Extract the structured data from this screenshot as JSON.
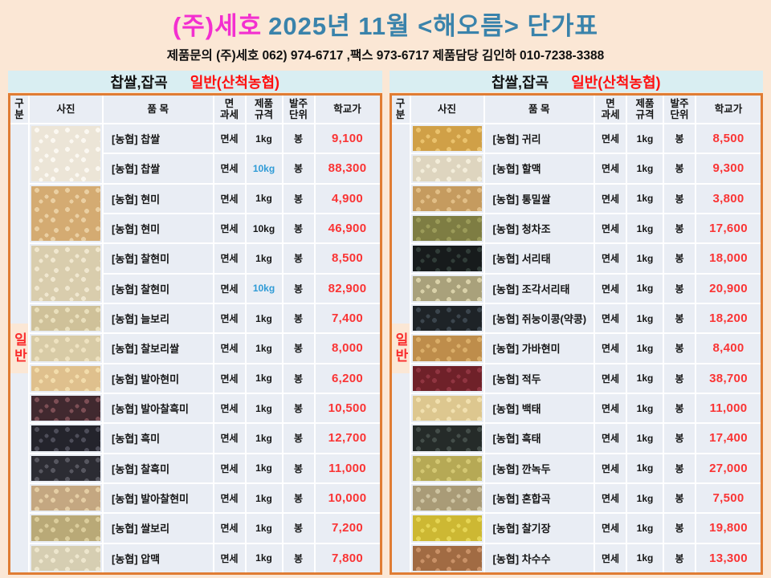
{
  "page": {
    "title_company": "(주)세호",
    "title_rest": "2025년  11월 <해오름> 단가표",
    "contact": "제품문의  (주)세호 062) 974-6717  ,팩스 973-6717  제품담당 김인하 010-7238-3388"
  },
  "colors": {
    "page_bg": "#fbe7d5",
    "title_company": "#f32fd0",
    "title_main": "#3a83ab",
    "board_title_bg": "#d9eef2",
    "cell_bg": "#e9edf4",
    "table_border": "#e07c33",
    "price_red": "#fa3434",
    "header_red": "#ff0f0f",
    "category_red": "#fa2d2d",
    "spec_blue": "#2f9bd6"
  },
  "boards": [
    {
      "title_black": "찹쌀,잡곡",
      "title_red": "일반(산척농협)",
      "columns": [
        "구분",
        "사진",
        "품  목",
        "면\n과세",
        "제품\n규격",
        "발주\n단위",
        "학교가"
      ],
      "category": "일반",
      "rows": [
        {
          "item": "[농협] 찹쌀",
          "tax": "면세",
          "spec": "1kg",
          "spec_blue": false,
          "unit": "봉",
          "price": "9,100",
          "photo": {
            "name": "white-glutinous-rice",
            "base": "#ece5d7",
            "dot": "#fbf8f1",
            "span": 2
          }
        },
        {
          "item": "[농협] 찹쌀",
          "tax": "면세",
          "spec": "10kg",
          "spec_blue": true,
          "unit": "봉",
          "price": "88,300",
          "photo": null
        },
        {
          "item": "[농협] 현미",
          "tax": "면세",
          "spec": "1kg",
          "spec_blue": false,
          "unit": "봉",
          "price": "4,900",
          "photo": {
            "name": "brown-rice",
            "base": "#d4ab72",
            "dot": "#eacfa2",
            "span": 2
          }
        },
        {
          "item": "[농협] 현미",
          "tax": "면세",
          "spec": "10kg",
          "spec_blue": false,
          "unit": "봉",
          "price": "46,900",
          "photo": null
        },
        {
          "item": "[농협] 찰현미",
          "tax": "면세",
          "spec": "1kg",
          "spec_blue": false,
          "unit": "봉",
          "price": "8,500",
          "photo": {
            "name": "glutinous-brown-rice",
            "base": "#d9cdad",
            "dot": "#f0e7cf",
            "span": 2
          }
        },
        {
          "item": "[농협] 찰현미",
          "tax": "면세",
          "spec": "10kg",
          "spec_blue": true,
          "unit": "봉",
          "price": "82,900",
          "photo": null
        },
        {
          "item": "[농협] 늘보리",
          "tax": "면세",
          "spec": "1kg",
          "spec_blue": false,
          "unit": "봉",
          "price": "7,400",
          "photo": {
            "name": "barley",
            "base": "#cfc199",
            "dot": "#e9dfbc",
            "span": 1
          }
        },
        {
          "item": "[농협] 찰보리쌀",
          "tax": "면세",
          "spec": "1kg",
          "spec_blue": false,
          "unit": "봉",
          "price": "8,000",
          "photo": {
            "name": "glutinous-barley",
            "base": "#d8cba6",
            "dot": "#eee2c0",
            "span": 1
          }
        },
        {
          "item": "[농협] 발아현미",
          "tax": "면세",
          "spec": "1kg",
          "spec_blue": false,
          "unit": "봉",
          "price": "6,200",
          "photo": {
            "name": "germinated-brown-rice",
            "base": "#dfc08d",
            "dot": "#f2dcab",
            "span": 1
          }
        },
        {
          "item": "[농협] 발아찰흑미",
          "tax": "면세",
          "spec": "1kg",
          "spec_blue": false,
          "unit": "봉",
          "price": "10,500",
          "photo": {
            "name": "germinated-black-rice",
            "base": "#41292f",
            "dot": "#7c4e55",
            "span": 1
          }
        },
        {
          "item": "[농협] 흑미",
          "tax": "면세",
          "spec": "1kg",
          "spec_blue": false,
          "unit": "봉",
          "price": "12,700",
          "photo": {
            "name": "black-rice",
            "base": "#24242c",
            "dot": "#4d4d59",
            "span": 1
          }
        },
        {
          "item": "[농협] 찰흑미",
          "tax": "면세",
          "spec": "1kg",
          "spec_blue": false,
          "unit": "봉",
          "price": "11,000",
          "photo": {
            "name": "glutinous-black-rice",
            "base": "#2c2c33",
            "dot": "#56565f",
            "span": 1
          }
        },
        {
          "item": "[농협] 발아찰현미",
          "tax": "면세",
          "spec": "1kg",
          "spec_blue": false,
          "unit": "봉",
          "price": "10,000",
          "photo": {
            "name": "germinated-glutinous-brown-rice",
            "base": "#c4a781",
            "dot": "#e4cda4",
            "span": 1
          }
        },
        {
          "item": "[농협] 쌀보리",
          "tax": "면세",
          "spec": "1kg",
          "spec_blue": false,
          "unit": "봉",
          "price": "7,200",
          "photo": {
            "name": "naked-barley",
            "base": "#b9a977",
            "dot": "#dacc9b",
            "span": 1
          }
        },
        {
          "item": "[농협] 압맥",
          "tax": "면세",
          "spec": "1kg",
          "spec_blue": false,
          "unit": "봉",
          "price": "7,800",
          "photo": {
            "name": "pressed-barley",
            "base": "#d6ceb2",
            "dot": "#ede6cd",
            "span": 1
          }
        }
      ]
    },
    {
      "title_black": "찹쌀,잡곡",
      "title_red": "일반(산척농협)",
      "columns": [
        "구분",
        "사진",
        "품  목",
        "면\n과세",
        "제품\n규격",
        "발주\n단위",
        "학교가"
      ],
      "category": "일반",
      "rows": [
        {
          "item": "[농협] 귀리",
          "tax": "면세",
          "spec": "1kg",
          "spec_blue": false,
          "unit": "봉",
          "price": "8,500",
          "photo": {
            "name": "oats",
            "base": "#d0a047",
            "dot": "#eac26d",
            "span": 1
          }
        },
        {
          "item": "[농협] 할맥",
          "tax": "면세",
          "spec": "1kg",
          "spec_blue": false,
          "unit": "봉",
          "price": "9,300",
          "photo": {
            "name": "split-barley",
            "base": "#ded5bf",
            "dot": "#f3edda",
            "span": 1
          }
        },
        {
          "item": "[농협] 통밀쌀",
          "tax": "면세",
          "spec": "1kg",
          "spec_blue": false,
          "unit": "봉",
          "price": "3,800",
          "photo": {
            "name": "whole-wheat",
            "base": "#c59b5f",
            "dot": "#e1be86",
            "span": 1
          }
        },
        {
          "item": "[농협] 청차조",
          "tax": "면세",
          "spec": "1kg",
          "spec_blue": false,
          "unit": "봉",
          "price": "17,600",
          "photo": {
            "name": "green-glutinous-millet",
            "base": "#7e7d43",
            "dot": "#9b9b59",
            "span": 1
          }
        },
        {
          "item": "[농협] 서리태",
          "tax": "면세",
          "spec": "1kg",
          "spec_blue": false,
          "unit": "봉",
          "price": "18,000",
          "photo": {
            "name": "black-soybean",
            "base": "#171b1c",
            "dot": "#303c38",
            "span": 1
          }
        },
        {
          "item": "[농협] 조각서리태",
          "tax": "면세",
          "spec": "1kg",
          "spec_blue": false,
          "unit": "봉",
          "price": "20,900",
          "photo": {
            "name": "split-black-soybean",
            "base": "#a9a17b",
            "dot": "#d9d1a9",
            "span": 1
          }
        },
        {
          "item": "[농협] 쥐눙이콩(약콩)",
          "tax": "면세",
          "spec": "1kg",
          "spec_blue": false,
          "unit": "봉",
          "price": "18,200",
          "photo": {
            "name": "small-black-bean",
            "base": "#1e2327",
            "dot": "#3b454d",
            "span": 1
          }
        },
        {
          "item": "[농협] 가바현미",
          "tax": "면세",
          "spec": "1kg",
          "spec_blue": false,
          "unit": "봉",
          "price": "8,400",
          "photo": {
            "name": "gaba-brown-rice",
            "base": "#be8d4b",
            "dot": "#daae69",
            "span": 1
          }
        },
        {
          "item": "[농협] 적두",
          "tax": "면세",
          "spec": "1kg",
          "spec_blue": false,
          "unit": "봉",
          "price": "38,700",
          "photo": {
            "name": "red-bean",
            "base": "#6f2129",
            "dot": "#903541",
            "span": 1
          }
        },
        {
          "item": "[농협] 백태",
          "tax": "면세",
          "spec": "1kg",
          "spec_blue": false,
          "unit": "봉",
          "price": "11,000",
          "photo": {
            "name": "white-soybean",
            "base": "#ddc78f",
            "dot": "#f1e0af",
            "span": 1
          }
        },
        {
          "item": "[농협] 흑태",
          "tax": "면세",
          "spec": "1kg",
          "spec_blue": false,
          "unit": "봉",
          "price": "17,400",
          "photo": {
            "name": "black-bean",
            "base": "#252b29",
            "dot": "#434d49",
            "span": 1
          }
        },
        {
          "item": "[농협] 깐녹두",
          "tax": "면세",
          "spec": "1kg",
          "spec_blue": false,
          "unit": "봉",
          "price": "27,000",
          "photo": {
            "name": "peeled-mung-bean",
            "base": "#b6a955",
            "dot": "#d3c772",
            "span": 1
          }
        },
        {
          "item": "[농협] 혼합곡",
          "tax": "면세",
          "spec": "1kg",
          "spec_blue": false,
          "unit": "봉",
          "price": "7,500",
          "photo": {
            "name": "mixed-grains",
            "base": "#a99b77",
            "dot": "#cdc3a1",
            "span": 1
          }
        },
        {
          "item": "[농협] 찰기장",
          "tax": "면세",
          "spec": "1kg",
          "spec_blue": false,
          "unit": "봉",
          "price": "19,800",
          "photo": {
            "name": "glutinous-millet",
            "base": "#cdb833",
            "dot": "#e5d554",
            "span": 1
          }
        },
        {
          "item": "[농협] 차수수",
          "tax": "면세",
          "spec": "1kg",
          "spec_blue": false,
          "unit": "봉",
          "price": "13,300",
          "photo": {
            "name": "glutinous-sorghum",
            "base": "#a16b43",
            "dot": "#c99167",
            "span": 1
          }
        }
      ]
    }
  ]
}
